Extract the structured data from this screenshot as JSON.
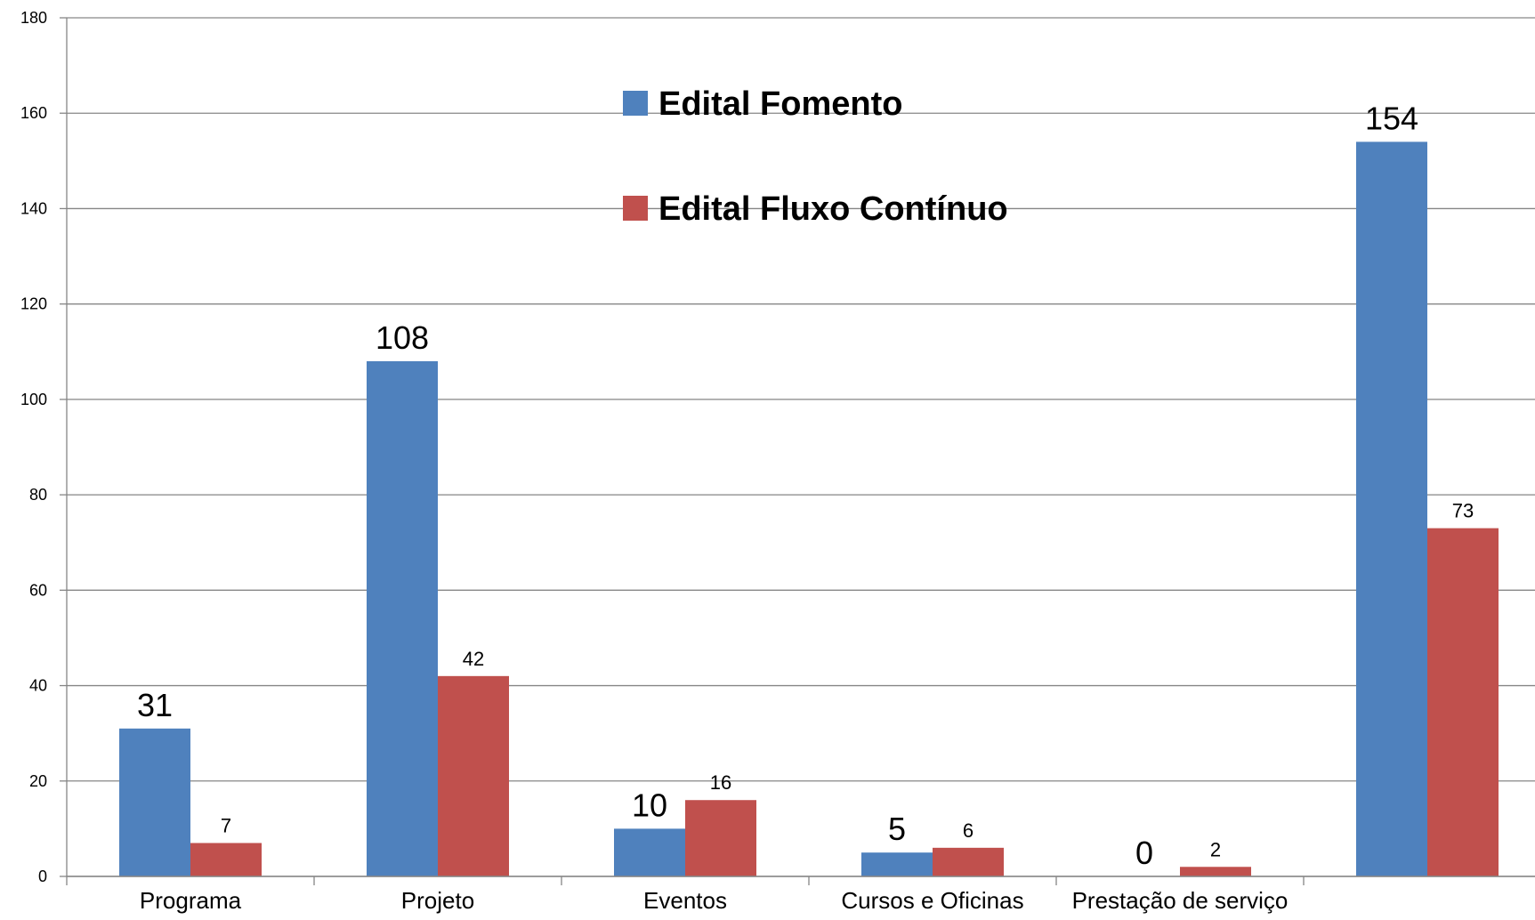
{
  "chart_data": {
    "type": "bar",
    "categories": [
      "Programa",
      "Projeto",
      "Eventos",
      "Cursos e Oficinas",
      "Prestação de serviço",
      ""
    ],
    "series": [
      {
        "name": "Edital Fomento",
        "values": [
          31,
          108,
          10,
          5,
          0,
          154
        ],
        "color": "#4F81BD"
      },
      {
        "name": "Edital Fluxo Contínuo",
        "values": [
          7,
          42,
          16,
          6,
          2,
          73
        ],
        "color": "#C0504D"
      }
    ],
    "title": "",
    "xlabel": "",
    "ylabel": "",
    "ylim": [
      0,
      180
    ],
    "yticks": [
      0,
      20,
      40,
      60,
      80,
      100,
      120,
      140,
      160,
      180
    ],
    "grid": true,
    "legend_position": "top-center"
  }
}
